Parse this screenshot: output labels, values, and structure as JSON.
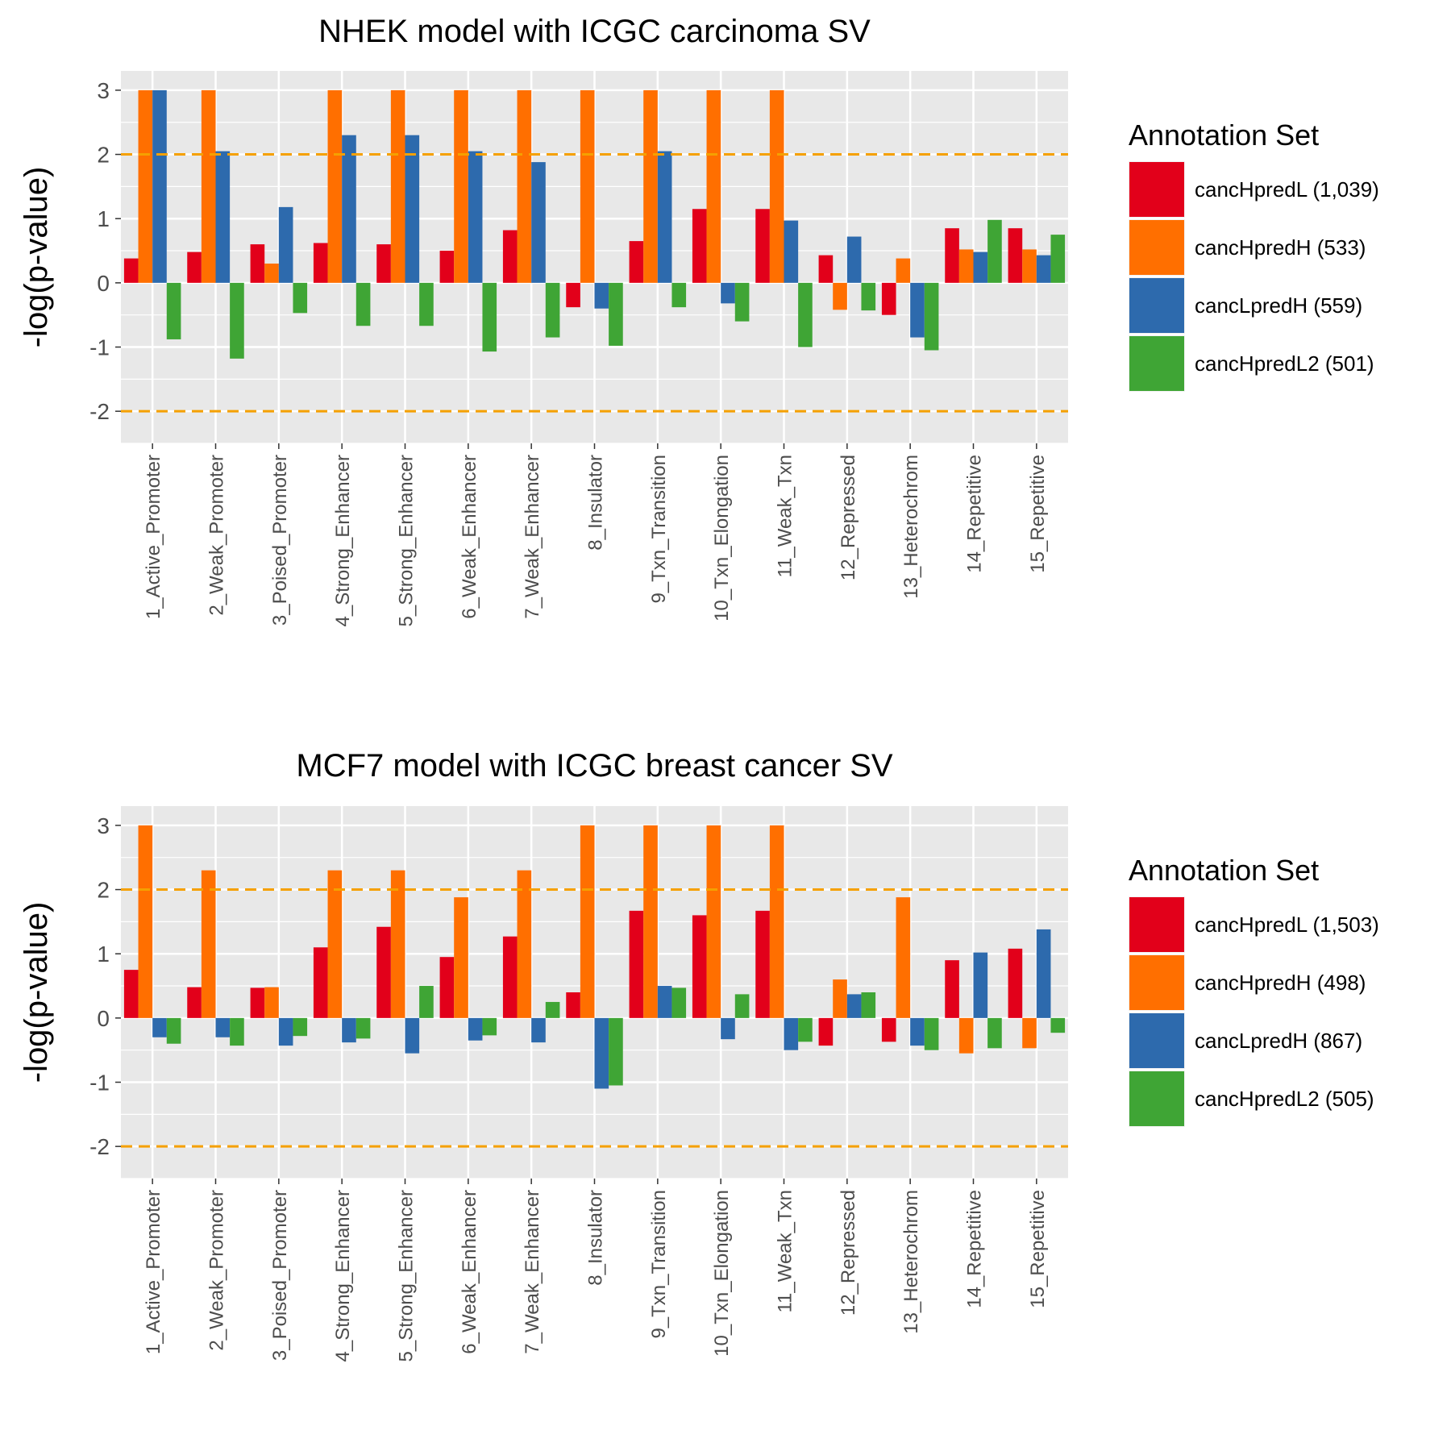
{
  "colors": {
    "panel_background": "#e8e8e8",
    "grid": "#ffffff",
    "threshold_line": "#f5a000",
    "axis_text": "#4d4d4d"
  },
  "chart_data": [
    {
      "type": "bar",
      "title": "NHEK model with ICGC carcinoma SV",
      "ylabel": "-log(p-value)",
      "xlabel": "",
      "ylim": [
        -2.5,
        3.3
      ],
      "yticks": [
        "3",
        "2",
        "1",
        "0",
        "-1",
        "-2"
      ],
      "threshold_lines": [
        2,
        -2
      ],
      "categories": [
        "1_Active_Promoter",
        "2_Weak_Promoter",
        "3_Poised_Promoter",
        "4_Strong_Enhancer",
        "5_Strong_Enhancer",
        "6_Weak_Enhancer",
        "7_Weak_Enhancer",
        "8_Insulator",
        "9_Txn_Transition",
        "10_Txn_Elongation",
        "11_Weak_Txn",
        "12_Repressed",
        "13_Heterochrom",
        "14_Repetitive",
        "15_Repetitive"
      ],
      "legend_title": "Annotation Set",
      "legend_position": "right",
      "series": [
        {
          "name": "cancHpredL (1,039)",
          "color": "#e2001a",
          "values": [
            0.38,
            0.48,
            0.6,
            0.62,
            0.6,
            0.5,
            0.82,
            -0.38,
            0.65,
            1.15,
            1.15,
            0.43,
            -0.5,
            0.85,
            0.85
          ]
        },
        {
          "name": "cancHpredH (533)",
          "color": "#ff6f00",
          "values": [
            3.0,
            3.0,
            0.3,
            3.0,
            3.0,
            3.0,
            3.0,
            3.0,
            3.0,
            3.0,
            3.0,
            -0.42,
            0.38,
            0.52,
            0.52
          ]
        },
        {
          "name": "cancLpredH (559)",
          "color": "#2d6aad",
          "values": [
            3.0,
            2.05,
            1.18,
            2.3,
            2.3,
            2.05,
            1.88,
            -0.4,
            2.05,
            -0.32,
            0.97,
            0.72,
            -0.85,
            0.48,
            0.43
          ]
        },
        {
          "name": "cancHpredL2 (501)",
          "color": "#3fa535",
          "values": [
            -0.88,
            -1.18,
            -0.47,
            -0.67,
            -0.67,
            -1.07,
            -0.85,
            -0.98,
            -0.38,
            -0.6,
            -1.0,
            -0.43,
            -1.05,
            0.98,
            0.75
          ]
        }
      ]
    },
    {
      "type": "bar",
      "title": "MCF7 model with ICGC breast cancer SV",
      "ylabel": "-log(p-value)",
      "xlabel": "",
      "ylim": [
        -2.5,
        3.3
      ],
      "yticks": [
        "3",
        "2",
        "1",
        "0",
        "-1",
        "-2"
      ],
      "threshold_lines": [
        2,
        -2
      ],
      "categories": [
        "1_Active_Promoter",
        "2_Weak_Promoter",
        "3_Poised_Promoter",
        "4_Strong_Enhancer",
        "5_Strong_Enhancer",
        "6_Weak_Enhancer",
        "7_Weak_Enhancer",
        "8_Insulator",
        "9_Txn_Transition",
        "10_Txn_Elongation",
        "11_Weak_Txn",
        "12_Repressed",
        "13_Heterochrom",
        "14_Repetitive",
        "15_Repetitive"
      ],
      "legend_title": "Annotation Set",
      "legend_position": "right",
      "series": [
        {
          "name": "cancHpredL (1,503)",
          "color": "#e2001a",
          "values": [
            0.75,
            0.48,
            0.47,
            1.1,
            1.42,
            0.95,
            1.27,
            0.4,
            1.67,
            1.6,
            1.67,
            -0.43,
            -0.37,
            0.9,
            1.08
          ]
        },
        {
          "name": "cancHpredH (498)",
          "color": "#ff6f00",
          "values": [
            3.0,
            2.3,
            0.48,
            2.3,
            2.3,
            1.88,
            2.3,
            3.0,
            3.0,
            3.0,
            3.0,
            0.6,
            1.88,
            -0.55,
            -0.47
          ]
        },
        {
          "name": "cancLpredH (867)",
          "color": "#2d6aad",
          "values": [
            -0.3,
            -0.3,
            -0.43,
            -0.38,
            -0.55,
            -0.35,
            -0.38,
            -1.1,
            0.5,
            -0.33,
            -0.5,
            0.37,
            -0.43,
            1.02,
            1.38
          ]
        },
        {
          "name": "cancHpredL2 (505)",
          "color": "#3fa535",
          "values": [
            -0.4,
            -0.43,
            -0.28,
            -0.32,
            0.5,
            -0.27,
            0.25,
            -1.05,
            0.47,
            0.37,
            -0.37,
            0.4,
            -0.5,
            -0.47,
            -0.23
          ]
        }
      ]
    }
  ]
}
